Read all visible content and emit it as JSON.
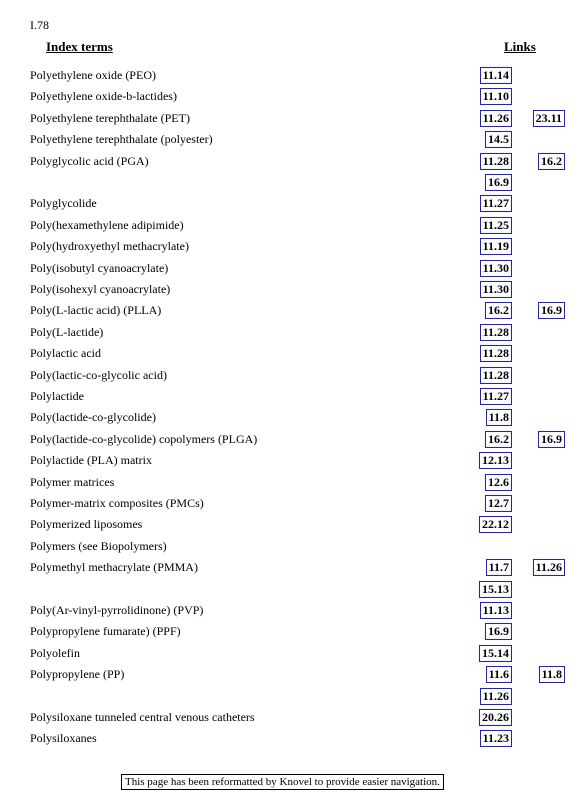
{
  "header": {
    "page": "I.78",
    "col_terms": "Index terms",
    "col_links": "Links"
  },
  "entries": [
    {
      "term": "Polyethylene oxide (PEO)",
      "links": [
        "11.14"
      ]
    },
    {
      "term": "Polyethylene oxide-b-lactides)",
      "links": [
        "11.10"
      ]
    },
    {
      "term": "Polyethylene terephthalate (PET)",
      "links": [
        "11.26",
        "23.11"
      ]
    },
    {
      "term": "Polyethylene terephthalate (polyester)",
      "links": [
        "14.5"
      ]
    },
    {
      "term": "Polyglycolic acid (PGA)",
      "links": [
        "11.28",
        "16.2",
        "16.9"
      ]
    },
    {
      "term": "Polyglycolide",
      "links": [
        "11.27"
      ]
    },
    {
      "term": "Poly(hexamethylene adipimide)",
      "links": [
        "11.25"
      ]
    },
    {
      "term": "Poly(hydroxyethyl methacrylate)",
      "links": [
        "11.19"
      ]
    },
    {
      "term": "Poly(isobutyl cyanoacrylate)",
      "links": [
        "11.30"
      ]
    },
    {
      "term": "Poly(isohexyl cyanoacrylate)",
      "links": [
        "11.30"
      ]
    },
    {
      "term": "Poly(L-lactic acid) (PLLA)",
      "links": [
        "16.2",
        "16.9"
      ]
    },
    {
      "term": "Poly(L-lactide)",
      "links": [
        "11.28"
      ]
    },
    {
      "term": "Polylactic acid",
      "links": [
        "11.28"
      ]
    },
    {
      "term": "Poly(lactic-co-glycolic acid)",
      "links": [
        "11.28"
      ]
    },
    {
      "term": "Polylactide",
      "links": [
        "11.27"
      ]
    },
    {
      "term": "Poly(lactide-co-glycolide)",
      "links": [
        "11.8"
      ]
    },
    {
      "term": "Poly(lactide-co-glycolide) copolymers (PLGA)",
      "links": [
        "16.2",
        "16.9"
      ]
    },
    {
      "term": "Polylactide (PLA) matrix",
      "links": [
        "12.13"
      ]
    },
    {
      "term": "Polymer matrices",
      "links": [
        "12.6"
      ]
    },
    {
      "term": "Polymer-matrix composites (PMCs)",
      "links": [
        "12.7"
      ]
    },
    {
      "term": "Polymerized liposomes",
      "links": [
        "22.12"
      ]
    },
    {
      "term": "Polymers (see Biopolymers)",
      "links": []
    },
    {
      "term": "Polymethyl methacrylate (PMMA)",
      "links": [
        "11.7",
        "11.26",
        "15.13"
      ]
    },
    {
      "term": "Poly(Ar-vinyl-pyrrolidinone) (PVP)",
      "links": [
        "11.13"
      ]
    },
    {
      "term": "Polypropylene fumarate) (PPF)",
      "links": [
        "16.9"
      ]
    },
    {
      "term": "Polyolefin",
      "links": [
        "15.14"
      ]
    },
    {
      "term": "Polypropylene (PP)",
      "links": [
        "11.6",
        "11.8",
        "11.26"
      ]
    },
    {
      "term": "Polysiloxane tunneled central venous catheters",
      "links": [
        "20.26"
      ]
    },
    {
      "term": "Polysiloxanes",
      "links": [
        "11.23"
      ]
    }
  ],
  "footer": "This page has been reformatted by Knovel to provide easier navigation."
}
